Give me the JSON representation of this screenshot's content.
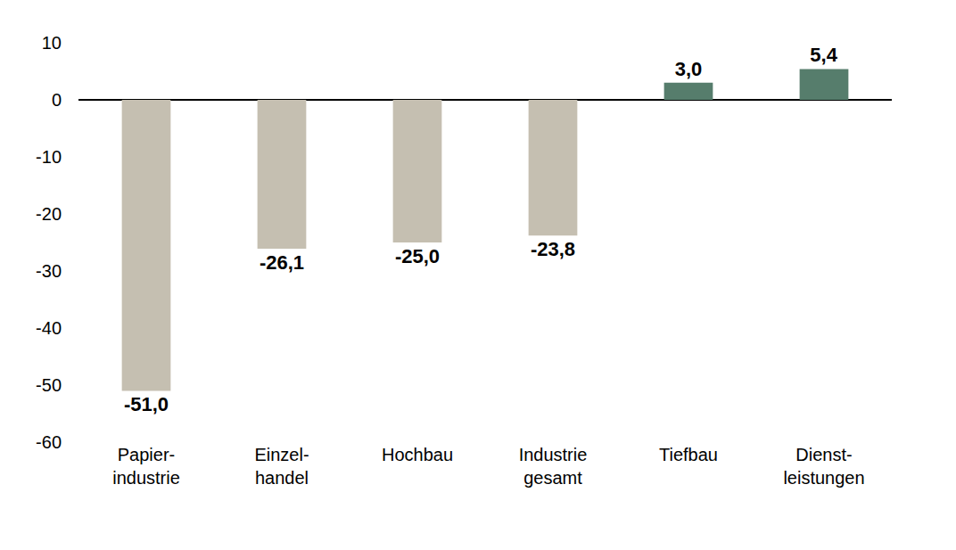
{
  "chart_data": {
    "type": "bar",
    "categories": [
      "Papier-\nindustrie",
      "Einzel-\nhandel",
      "Hochbau",
      "Industrie\ngesamt",
      "Tiefbau",
      "Dienst-\nleistungen"
    ],
    "values": [
      -51.0,
      -26.1,
      -25.0,
      -23.8,
      3.0,
      5.4
    ],
    "value_labels": [
      "-51,0",
      "-26,1",
      "-25,0",
      "-23,8",
      "3,0",
      "5,4"
    ],
    "colors": [
      "#c5bfb1",
      "#c5bfb1",
      "#c5bfb1",
      "#c5bfb1",
      "#567d6c",
      "#567d6c"
    ],
    "ylim": [
      -60,
      10
    ],
    "yticks": [
      10,
      0,
      -10,
      -20,
      -30,
      -40,
      -50,
      -60
    ],
    "grid": false,
    "data_labels": true
  }
}
